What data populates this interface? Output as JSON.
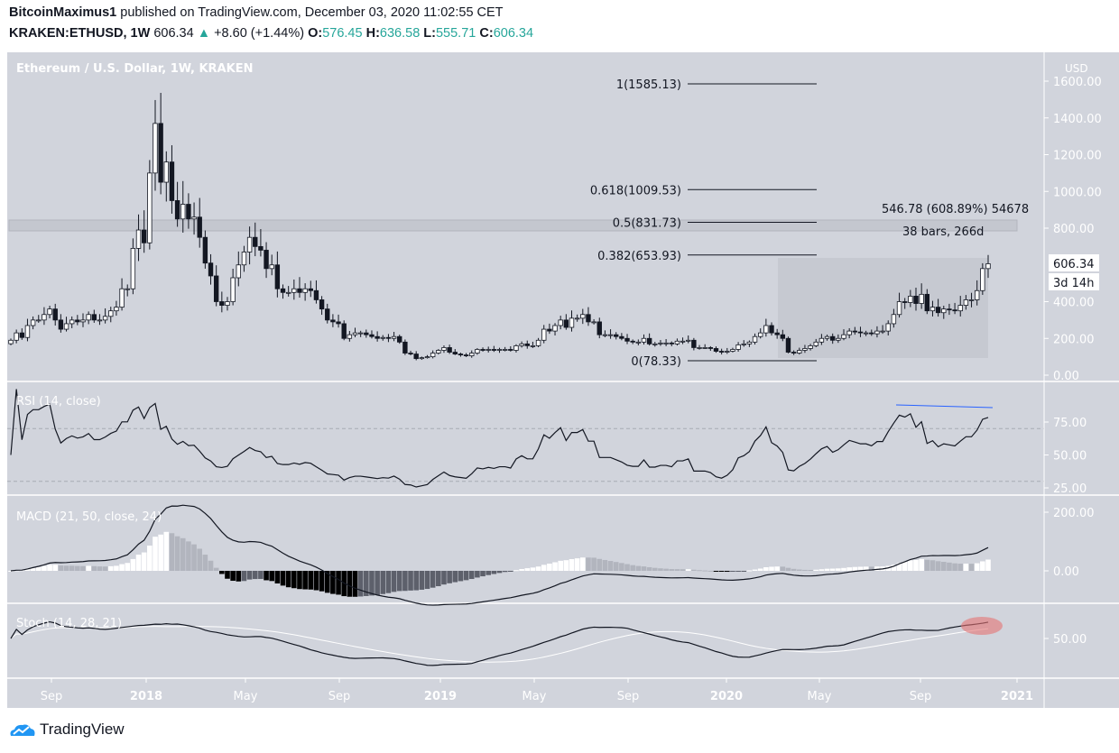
{
  "header": {
    "author": "BitcoinMaximus1",
    "published": "published on TradingView.com, December 03, 2020 11:02:55 CET",
    "symbol": "KRAKEN:ETHUSD, 1W",
    "last": "606.34",
    "change": "+8.60 (+1.44%)",
    "o_label": "O:",
    "o": "576.45",
    "h_label": "H:",
    "h": "636.58",
    "l_label": "L:",
    "l": "555.71",
    "c_label": "C:",
    "c": "606.34"
  },
  "chart_title": "Ethereum / U.S. Dollar, 1W, KRAKEN",
  "colors": {
    "pane_bg": "#d1d4dc",
    "up": "#26a69a",
    "rsi_trend": "#2962ff",
    "highlight": "#e57373"
  },
  "footer": {
    "brand": "TradingView"
  },
  "chart_data": {
    "type": "candlestick",
    "price_axis": {
      "unit": "USD",
      "ticks": [
        "1600.00",
        "1400.00",
        "1200.00",
        "1000.00",
        "800.00",
        "400.00",
        "200.00",
        "0.00"
      ],
      "ylim": [
        0,
        1600
      ],
      "last_price_label": "606.34",
      "countdown": "3d 14h"
    },
    "time_axis": {
      "ticks": [
        "Sep",
        "2018",
        "May",
        "Sep",
        "2019",
        "May",
        "Sep",
        "2020",
        "May",
        "Sep",
        "2021"
      ]
    },
    "weekly_close": [
      190,
      230,
      205,
      270,
      300,
      300,
      330,
      360,
      300,
      250,
      280,
      300,
      290,
      300,
      330,
      300,
      300,
      320,
      350,
      370,
      470,
      470,
      690,
      790,
      720,
      1100,
      1370,
      1050,
      1160,
      950,
      850,
      930,
      850,
      860,
      750,
      610,
      540,
      400,
      380,
      400,
      530,
      600,
      670,
      750,
      700,
      680,
      580,
      600,
      470,
      450,
      450,
      470,
      450,
      470,
      460,
      410,
      360,
      300,
      290,
      280,
      200,
      220,
      230,
      230,
      220,
      210,
      200,
      205,
      200,
      210,
      180,
      120,
      115,
      90,
      95,
      100,
      120,
      135,
      150,
      125,
      115,
      110,
      105,
      120,
      140,
      135,
      140,
      135,
      140,
      140,
      135,
      160,
      170,
      160,
      160,
      190,
      250,
      240,
      270,
      300,
      260,
      310,
      310,
      330,
      290,
      290,
      220,
      220,
      220,
      210,
      200,
      185,
      180,
      180,
      200,
      170,
      170,
      175,
      175,
      170,
      185,
      185,
      190,
      150,
      150,
      150,
      145,
      130,
      125,
      130,
      140,
      165,
      170,
      180,
      210,
      230,
      270,
      230,
      220,
      200,
      125,
      120,
      135,
      145,
      160,
      180,
      200,
      210,
      190,
      200,
      220,
      240,
      235,
      230,
      230,
      225,
      240,
      240,
      280,
      330,
      400,
      395,
      430,
      390,
      440,
      350,
      370,
      340,
      360,
      355,
      350,
      380,
      410,
      410,
      460,
      580,
      606.34
    ],
    "fibonacci": [
      {
        "label": "1(1585.13)",
        "price": 1585.13
      },
      {
        "label": "0.618(1009.53)",
        "price": 1009.53
      },
      {
        "label": "0.5(831.73)",
        "price": 831.73
      },
      {
        "label": "0.382(653.93)",
        "price": 653.93
      },
      {
        "label": "0(78.33)",
        "price": 78.33
      }
    ],
    "measure": {
      "line1": "546.78 (608.89%) 54678",
      "line2": "38 bars, 266d"
    },
    "indicators": [
      {
        "name": "RSI (14, close)",
        "ticks": [
          "75.00",
          "50.00",
          "25.00"
        ],
        "bands": [
          70,
          30
        ]
      },
      {
        "name": "MACD (21, 50, close, 24)",
        "ticks": [
          "200.00",
          "0.00"
        ]
      },
      {
        "name": "Stoch (14, 28, 21)",
        "ticks": [
          "50.00"
        ]
      }
    ]
  }
}
